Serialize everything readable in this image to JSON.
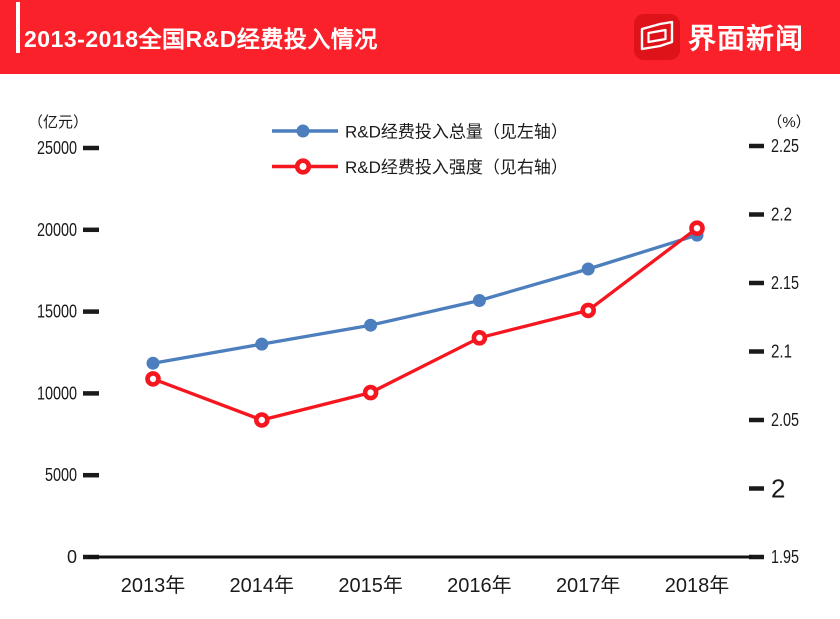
{
  "header": {
    "title": "2013-2018全国R&D经费投入情况",
    "brand": "界面新闻",
    "bg_color": "#fa212b",
    "logo_tile_color": "#de1219"
  },
  "chart_data": {
    "type": "line",
    "title": "2013-2018全国R&D经费投入情况",
    "categories": [
      "2013年",
      "2014年",
      "2015年",
      "2016年",
      "2017年",
      "2018年"
    ],
    "series": [
      {
        "name": "R&D经费投入总量（见左轴）",
        "axis": "left",
        "color": "#4d7ebe",
        "marker": "dot",
        "values": [
          11847,
          13016,
          14170,
          15677,
          17606,
          19678
        ]
      },
      {
        "name": "R&D经费投入强度（见右轴）",
        "axis": "right",
        "color": "#f5161f",
        "marker": "ring",
        "values": [
          2.08,
          2.05,
          2.07,
          2.11,
          2.13,
          2.19
        ]
      }
    ],
    "left_axis": {
      "unit_label": "（亿元）",
      "ylim": [
        0,
        25000
      ],
      "ticks": [
        {
          "v": 25000,
          "label": "25000"
        },
        {
          "v": 20000,
          "label": "20000"
        },
        {
          "v": 15000,
          "label": "15000"
        },
        {
          "v": 10000,
          "label": "10000"
        },
        {
          "v": 5000,
          "label": "5000"
        },
        {
          "v": 0,
          "label": "0"
        }
      ]
    },
    "right_axis": {
      "unit_label": "（%）",
      "ylim": [
        1.95,
        2.25
      ],
      "ticks": [
        {
          "v": 2.25,
          "label": "2.25"
        },
        {
          "v": 2.2,
          "label": "2.2"
        },
        {
          "v": 2.15,
          "label": "2.15"
        },
        {
          "v": 2.1,
          "label": "2.1"
        },
        {
          "v": 2.05,
          "label": "2.05"
        },
        {
          "v": 2.0,
          "label": "2",
          "size": "lg"
        },
        {
          "v": 1.95,
          "label": "1.95"
        }
      ]
    },
    "legend_position": "top-center",
    "grid": false,
    "axis_color": "#1a1a1a"
  }
}
